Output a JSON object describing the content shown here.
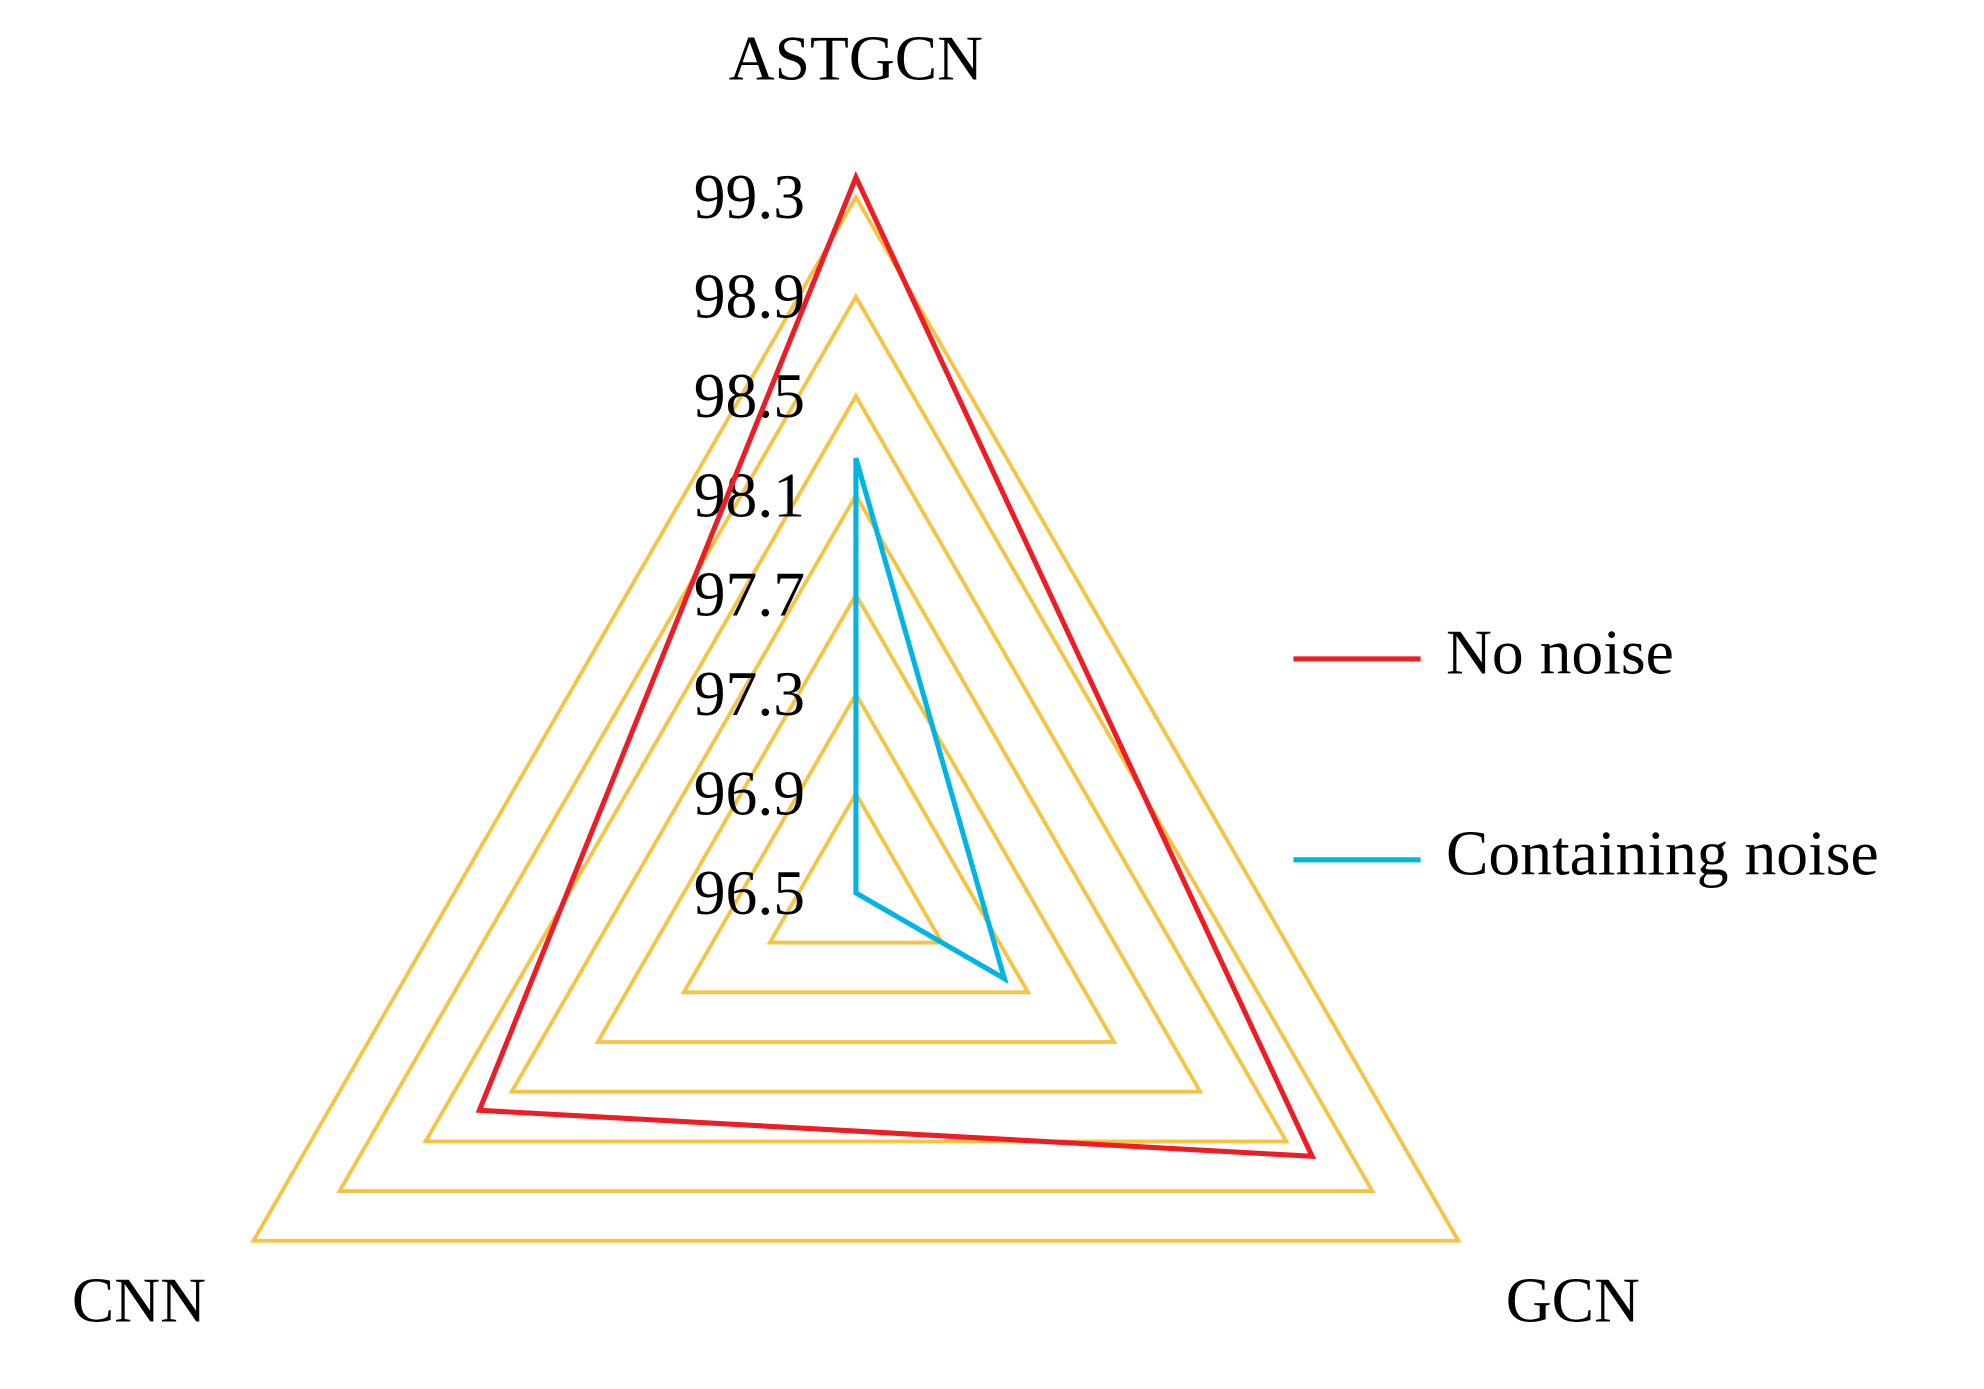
{
  "chart_data": {
    "type": "radar",
    "categories": [
      "ASTGCN",
      "GCN",
      "CNN"
    ],
    "series": [
      {
        "name": "No noise",
        "color": "#ee1c25",
        "values": [
          99.38,
          98.62,
          98.25
        ]
      },
      {
        "name": "Containing noise",
        "color": "#00b4e4",
        "values": [
          98.25,
          97.19,
          96.5
        ]
      }
    ],
    "ylim": [
      96.5,
      99.3
    ],
    "yticks": [
      96.5,
      96.9,
      97.3,
      97.7,
      98.1,
      98.5,
      98.9,
      99.3
    ],
    "grid": true,
    "grid_color": "#f6c342",
    "legend": "right"
  }
}
